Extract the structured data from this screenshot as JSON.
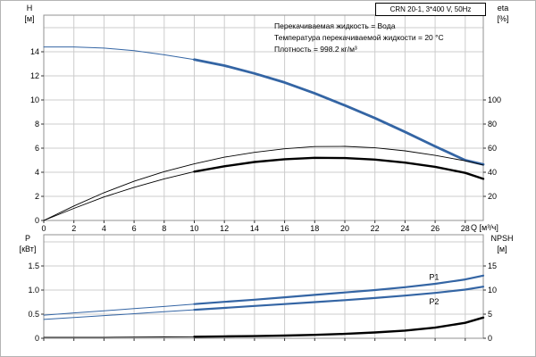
{
  "header": {
    "title_box": "CRN 20-1, 3*400 V, 50Hz"
  },
  "annotations": [
    "Перекачиваемая жидкость = Вода",
    "Температура перекачиваемой жидкости = 20 °C",
    "Плотность = 998.2 кг/м³"
  ],
  "axis_labels": {
    "h": "H",
    "h_unit": "[м]",
    "eta": "eta",
    "eta_unit": "[%]",
    "q": "Q [м³/ч]",
    "p": "P",
    "p_unit": "[кВт]",
    "npsh": "NPSH",
    "npsh_unit": "[м]"
  },
  "colors": {
    "curve_blue": "#3465a4",
    "curve_black": "#000000",
    "grid": "#cccccc",
    "frame": "#909090",
    "tick": "#333333",
    "border": "#b4b4b4"
  },
  "chart_data": [
    {
      "type": "line",
      "title": "CRN 20-1, 3*400 V, 50Hz",
      "xlabel": "Q [м³/ч]",
      "ylabel_left": "H [м]",
      "ylabel_right": "eta [%]",
      "x": {
        "min": 0,
        "max": 29.2,
        "grid": [
          2,
          4,
          6,
          8,
          10,
          12,
          14,
          16,
          18,
          20,
          22,
          24,
          26,
          28
        ],
        "ticks": [
          {
            "v": 0,
            "t": "0"
          },
          {
            "v": 2,
            "t": "2"
          },
          {
            "v": 4,
            "t": "4"
          },
          {
            "v": 6,
            "t": "6"
          },
          {
            "v": 8,
            "t": "8"
          },
          {
            "v": 10,
            "t": "10"
          },
          {
            "v": 12,
            "t": "12"
          },
          {
            "v": 14,
            "t": "14"
          },
          {
            "v": 16,
            "t": "16"
          },
          {
            "v": 18,
            "t": "18"
          },
          {
            "v": 20,
            "t": "20"
          },
          {
            "v": 22,
            "t": "22"
          },
          {
            "v": 24,
            "t": "24"
          },
          {
            "v": 26,
            "t": "26"
          },
          {
            "v": 28,
            "t": "28"
          }
        ]
      },
      "y_left": {
        "min": 0,
        "max": 17,
        "grid": [
          2,
          4,
          6,
          8,
          10,
          12,
          14,
          16
        ],
        "ticks": [
          {
            "v": 0,
            "t": "0"
          },
          {
            "v": 2,
            "t": "2"
          },
          {
            "v": 4,
            "t": "4"
          },
          {
            "v": 6,
            "t": "6"
          },
          {
            "v": 8,
            "t": "8"
          },
          {
            "v": 10,
            "t": "10"
          },
          {
            "v": 12,
            "t": "12"
          },
          {
            "v": 14,
            "t": "14"
          }
        ]
      },
      "y_right": {
        "min": 0,
        "max": 170,
        "ticks": [
          {
            "v": 20,
            "t": "20"
          },
          {
            "v": 40,
            "t": "40"
          },
          {
            "v": 60,
            "t": "60"
          },
          {
            "v": 80,
            "t": "80"
          },
          {
            "v": 100,
            "t": "100"
          }
        ]
      },
      "series": [
        {
          "name": "head-curve-H",
          "axis": "left",
          "color": "#3465a4",
          "thin_w": 1,
          "bold_w": 2.8,
          "bold_from": 10,
          "points": [
            [
              0,
              14.4
            ],
            [
              2,
              14.4
            ],
            [
              4,
              14.3
            ],
            [
              6,
              14.1
            ],
            [
              8,
              13.75
            ],
            [
              10,
              13.35
            ],
            [
              12,
              12.85
            ],
            [
              14,
              12.2
            ],
            [
              16,
              11.45
            ],
            [
              18,
              10.55
            ],
            [
              20,
              9.55
            ],
            [
              22,
              8.5
            ],
            [
              24,
              7.35
            ],
            [
              26,
              6.15
            ],
            [
              28,
              5.0
            ],
            [
              29.2,
              4.65
            ]
          ]
        },
        {
          "name": "eta-pump",
          "axis": "right",
          "color": "#000000",
          "thin_w": 0.9,
          "points": [
            [
              0,
              0
            ],
            [
              2,
              12
            ],
            [
              4,
              23
            ],
            [
              6,
              32.5
            ],
            [
              8,
              40.5
            ],
            [
              10,
              47
            ],
            [
              12,
              52.5
            ],
            [
              14,
              56.5
            ],
            [
              16,
              59.5
            ],
            [
              18,
              61.3
            ],
            [
              20,
              61.5
            ],
            [
              22,
              60.3
            ],
            [
              24,
              57.8
            ],
            [
              26,
              54
            ],
            [
              28,
              49.5
            ],
            [
              29.2,
              46
            ]
          ]
        },
        {
          "name": "eta-pump-motor",
          "axis": "right",
          "color": "#000000",
          "thin_w": 0.9,
          "bold_w": 2.4,
          "bold_from": 10,
          "points": [
            [
              0,
              0
            ],
            [
              2,
              10
            ],
            [
              4,
              19.5
            ],
            [
              6,
              27.5
            ],
            [
              8,
              34.5
            ],
            [
              10,
              40.5
            ],
            [
              12,
              45
            ],
            [
              14,
              48.5
            ],
            [
              16,
              50.8
            ],
            [
              18,
              52
            ],
            [
              20,
              51.8
            ],
            [
              22,
              50.5
            ],
            [
              24,
              48
            ],
            [
              26,
              44.5
            ],
            [
              28,
              39.5
            ],
            [
              29.2,
              34.5
            ]
          ]
        }
      ]
    },
    {
      "type": "line",
      "xlabel": "",
      "ylabel_left": "P [кВт]",
      "ylabel_right": "NPSH [м]",
      "x": {
        "min": 0,
        "max": 29.2,
        "grid": [
          2,
          4,
          6,
          8,
          10,
          12,
          14,
          16,
          18,
          20,
          22,
          24,
          26,
          28
        ],
        "ticks": [
          {
            "v": 0,
            "t": ""
          },
          {
            "v": 2,
            "t": ""
          },
          {
            "v": 4,
            "t": ""
          },
          {
            "v": 6,
            "t": ""
          },
          {
            "v": 8,
            "t": ""
          },
          {
            "v": 10,
            "t": ""
          },
          {
            "v": 12,
            "t": ""
          },
          {
            "v": 14,
            "t": ""
          },
          {
            "v": 16,
            "t": ""
          },
          {
            "v": 18,
            "t": ""
          },
          {
            "v": 20,
            "t": ""
          },
          {
            "v": 22,
            "t": ""
          },
          {
            "v": 24,
            "t": ""
          },
          {
            "v": 26,
            "t": ""
          },
          {
            "v": 28,
            "t": ""
          }
        ]
      },
      "y_left": {
        "min": 0,
        "max": 2.15,
        "grid": [
          0.5,
          1.0,
          1.5,
          2.0
        ],
        "ticks": [
          {
            "v": 0,
            "t": "0"
          },
          {
            "v": 0.5,
            "t": "0.5"
          },
          {
            "v": 1.0,
            "t": "1.0"
          },
          {
            "v": 1.5,
            "t": "1.5"
          }
        ]
      },
      "y_right": {
        "min": 0,
        "max": 21.5,
        "ticks": [
          {
            "v": 0,
            "t": "0"
          },
          {
            "v": 5,
            "t": "5"
          },
          {
            "v": 10,
            "t": "10"
          },
          {
            "v": 15,
            "t": "15"
          }
        ]
      },
      "series": [
        {
          "name": "power-P1",
          "axis": "left",
          "color": "#3465a4",
          "thin_w": 1,
          "bold_w": 2.2,
          "bold_from": 10,
          "label": "P1",
          "label_q": 25.6,
          "label_dy": -5,
          "points": [
            [
              0,
              0.48
            ],
            [
              2,
              0.525
            ],
            [
              4,
              0.57
            ],
            [
              6,
              0.615
            ],
            [
              8,
              0.66
            ],
            [
              10,
              0.71
            ],
            [
              12,
              0.755
            ],
            [
              14,
              0.8
            ],
            [
              16,
              0.85
            ],
            [
              18,
              0.9
            ],
            [
              20,
              0.95
            ],
            [
              22,
              1.0
            ],
            [
              24,
              1.06
            ],
            [
              26,
              1.13
            ],
            [
              28,
              1.22
            ],
            [
              29.2,
              1.3
            ]
          ]
        },
        {
          "name": "power-P2",
          "axis": "left",
          "color": "#3465a4",
          "thin_w": 1,
          "bold_w": 2.2,
          "bold_from": 10,
          "label": "P2",
          "label_q": 25.6,
          "label_dy": 12,
          "points": [
            [
              0,
              0.39
            ],
            [
              2,
              0.43
            ],
            [
              4,
              0.47
            ],
            [
              6,
              0.51
            ],
            [
              8,
              0.55
            ],
            [
              10,
              0.59
            ],
            [
              12,
              0.63
            ],
            [
              14,
              0.67
            ],
            [
              16,
              0.71
            ],
            [
              18,
              0.75
            ],
            [
              20,
              0.79
            ],
            [
              22,
              0.835
            ],
            [
              24,
              0.885
            ],
            [
              26,
              0.94
            ],
            [
              28,
              1.01
            ],
            [
              29.2,
              1.07
            ]
          ]
        },
        {
          "name": "npsh-curve",
          "axis": "right",
          "color": "#000000",
          "thin_w": 0.9,
          "bold_w": 2.4,
          "bold_from": 10,
          "points": [
            [
              0,
              0.2
            ],
            [
              4,
              0.2
            ],
            [
              8,
              0.27
            ],
            [
              10,
              0.32
            ],
            [
              12,
              0.38
            ],
            [
              14,
              0.45
            ],
            [
              16,
              0.55
            ],
            [
              18,
              0.7
            ],
            [
              20,
              0.9
            ],
            [
              22,
              1.2
            ],
            [
              24,
              1.6
            ],
            [
              26,
              2.2
            ],
            [
              28,
              3.2
            ],
            [
              29.2,
              4.3
            ]
          ]
        }
      ]
    }
  ]
}
